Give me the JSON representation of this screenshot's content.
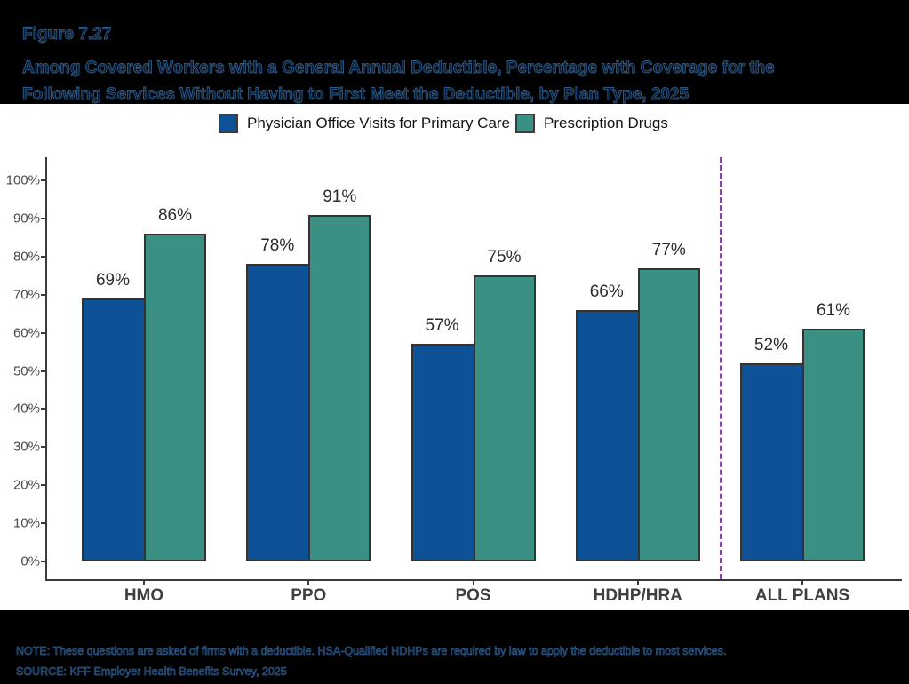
{
  "figure": {
    "label": "Figure 7.27",
    "title_line1": "Among Covered Workers with a General Annual Deductible, Percentage with Coverage for the",
    "title_line2": "Following Services Without Having to First Meet the Deductible, by Plan Type, 2025"
  },
  "legend": {
    "items": [
      {
        "label": "Physician Office Visits for Primary Care",
        "color": "#0d5296"
      },
      {
        "label": "Prescription Drugs",
        "color": "#3a9082"
      }
    ]
  },
  "chart_data": {
    "type": "bar",
    "title": "Among Covered Workers with a General Annual Deductible, Percentage with Coverage for the Following Services Without Having to First Meet the Deductible, by Plan Type, 2025",
    "categories": [
      "HMO",
      "PPO",
      "POS",
      "HDHP/HRA",
      "ALL PLANS"
    ],
    "series": [
      {
        "name": "Physician Office Visits for Primary Care",
        "color": "#0d5296",
        "values": [
          69,
          78,
          57,
          66,
          52
        ]
      },
      {
        "name": "Prescription Drugs",
        "color": "#3a9082",
        "values": [
          86,
          91,
          75,
          77,
          61
        ]
      }
    ],
    "value_suffix": "%",
    "y_ticks": [
      "0%",
      "10%",
      "20%",
      "30%",
      "40%",
      "50%",
      "60%",
      "70%",
      "80%",
      "90%",
      "100%"
    ],
    "ylim": [
      0,
      100
    ],
    "grid": false,
    "legend_position": "top",
    "bar_border_color": "#333333",
    "axis_color": "#3a3a3a",
    "separator_before_category": "ALL PLANS",
    "separator_color": "#7d4a9e"
  },
  "notes": {
    "note": "NOTE: These questions are asked of firms with a deductible. HSA-Qualified HDHPs are required by law to apply the deductible to most services.",
    "source": "SOURCE: KFF Employer Health Benefits Survey, 2025"
  }
}
